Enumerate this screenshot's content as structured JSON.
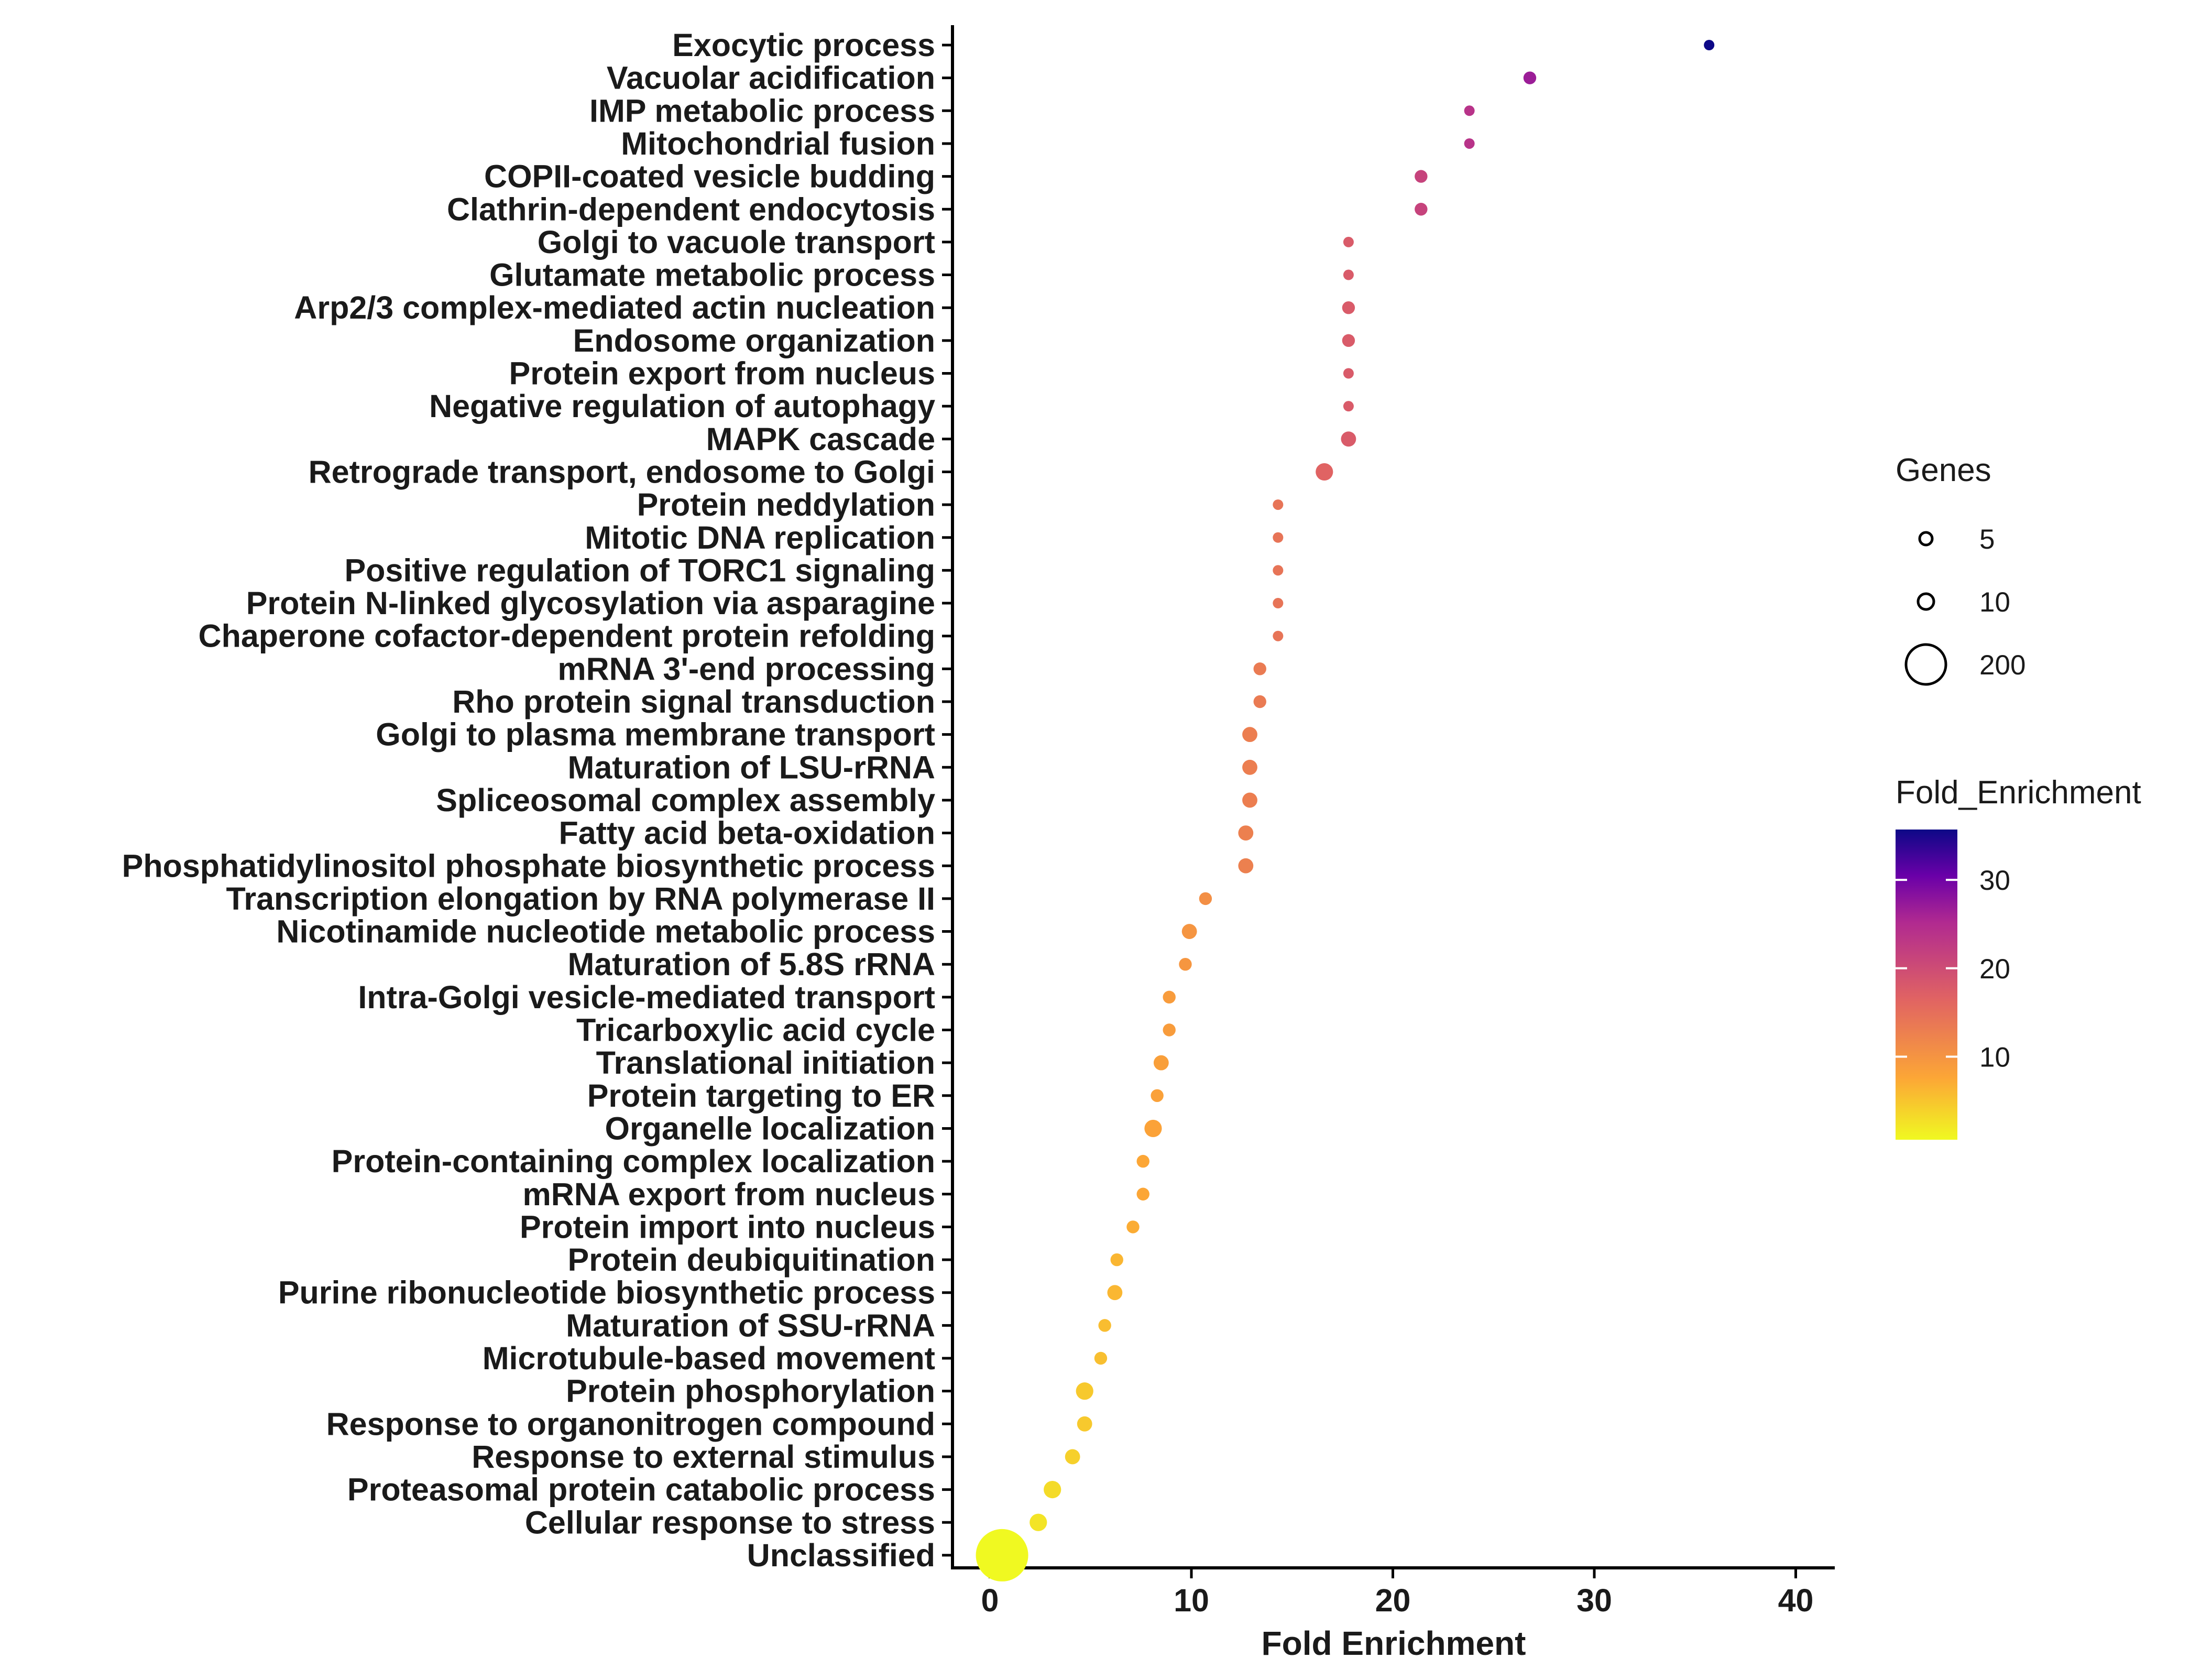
{
  "chart_data": {
    "type": "scatter",
    "xlabel": "Fold Enrichment",
    "ylabel": "",
    "xlim": [
      -2,
      42
    ],
    "xticks": [
      0,
      10,
      20,
      30,
      40
    ],
    "categories": [
      "Exocytic process",
      "Vacuolar acidification",
      "IMP metabolic process",
      "Mitochondrial fusion",
      "COPII-coated vesicle budding",
      "Clathrin-dependent endocytosis",
      "Golgi to vacuole transport",
      "Glutamate metabolic process",
      "Arp2/3 complex-mediated actin nucleation",
      "Endosome organization",
      "Protein export from nucleus",
      "Negative regulation of autophagy",
      "MAPK cascade",
      "Retrograde transport, endosome to Golgi",
      "Protein neddylation",
      "Mitotic DNA replication",
      "Positive regulation of TORC1 signaling",
      "Protein N-linked glycosylation via asparagine",
      "Chaperone cofactor-dependent protein refolding",
      "mRNA 3'-end processing",
      "Rho protein signal transduction",
      "Golgi to plasma membrane transport",
      "Maturation of LSU-rRNA",
      "Spliceosomal complex assembly",
      "Fatty acid beta-oxidation",
      "Phosphatidylinositol phosphate biosynthetic process",
      "Transcription elongation by RNA polymerase II",
      "Nicotinamide nucleotide metabolic process",
      "Maturation of 5.8S rRNA",
      "Intra-Golgi vesicle-mediated transport",
      "Tricarboxylic acid cycle",
      "Translational initiation",
      "Protein targeting to ER",
      "Organelle localization",
      "Protein-containing complex localization",
      "mRNA export from nucleus",
      "Protein import into nucleus",
      "Protein deubiquitination",
      "Purine ribonucleotide biosynthetic process",
      "Maturation of SSU-rRNA",
      "Microtubule-based movement",
      "Protein phosphorylation",
      "Response to organonitrogen compound",
      "Response to external stimulus",
      "Proteasomal protein catabolic process",
      "Cellular response to stress",
      "Unclassified"
    ],
    "fold_enrichment": [
      35.7,
      26.8,
      23.8,
      23.8,
      21.4,
      21.4,
      17.8,
      17.8,
      17.8,
      17.8,
      17.8,
      17.8,
      17.8,
      16.6,
      14.3,
      14.3,
      14.3,
      14.3,
      14.3,
      13.4,
      13.4,
      12.9,
      12.9,
      12.9,
      12.7,
      12.7,
      10.7,
      9.9,
      9.7,
      8.9,
      8.9,
      8.5,
      8.3,
      8.1,
      7.6,
      7.6,
      7.1,
      6.3,
      6.2,
      5.7,
      5.5,
      4.7,
      4.7,
      4.1,
      3.1,
      2.4,
      0.6
    ],
    "genes": [
      3,
      4,
      3,
      3,
      4,
      4,
      3,
      3,
      4,
      4,
      3,
      3,
      5,
      6,
      3,
      3,
      3,
      3,
      3,
      4,
      4,
      5,
      5,
      5,
      5,
      5,
      4,
      5,
      4,
      4,
      4,
      5,
      4,
      6,
      4,
      4,
      4,
      4,
      5,
      4,
      4,
      6,
      5,
      5,
      6,
      6,
      200
    ],
    "size_legend": {
      "title": "Genes",
      "entries": [
        5,
        10,
        200
      ]
    },
    "color_legend": {
      "title": "Fold_Enrichment",
      "ticks": [
        10,
        20,
        30
      ],
      "range": [
        0.6,
        35.7
      ],
      "colors": [
        "#f0f921",
        "#fca636",
        "#e16462",
        "#b12a90",
        "#6a00a8",
        "#0d0887"
      ]
    }
  }
}
